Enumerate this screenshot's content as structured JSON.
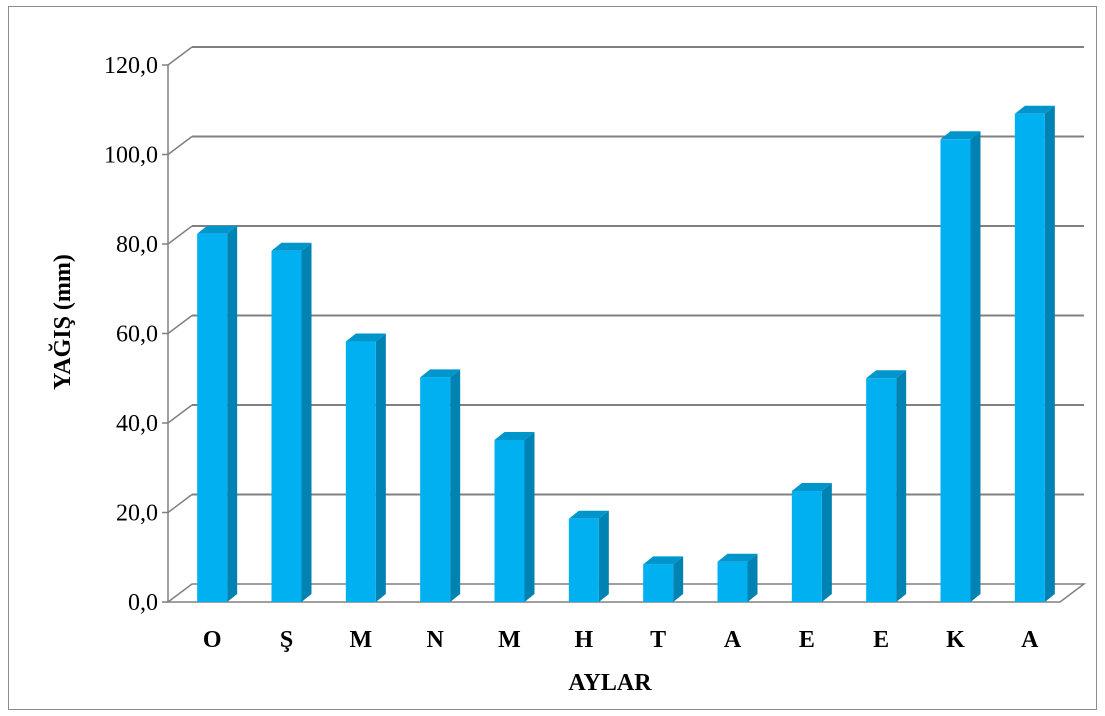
{
  "chart_data": {
    "type": "bar",
    "style": "3d-clustered-column",
    "categories": [
      "O",
      "Ş",
      "M",
      "N",
      "M",
      "H",
      "T",
      "A",
      "E",
      "E",
      "K",
      "A"
    ],
    "values": [
      82.3,
      78.5,
      58.2,
      50.2,
      36.2,
      18.6,
      8.4,
      9.0,
      24.8,
      50.0,
      103.4,
      109.1
    ],
    "xlabel": "AYLAR",
    "ylabel": "YAĞIŞ (mm)",
    "ylim": [
      0,
      120
    ],
    "yticks": [
      "0,0",
      "20,0",
      "40,0",
      "60,0",
      "80,0",
      "100,0",
      "120,0"
    ],
    "grid": true,
    "legend": "none",
    "colors": {
      "bar_front": "#00B0F0",
      "bar_side": "#0082B2",
      "bar_top": "#0096CC",
      "grid": "#808080",
      "floor": "#808080"
    }
  }
}
